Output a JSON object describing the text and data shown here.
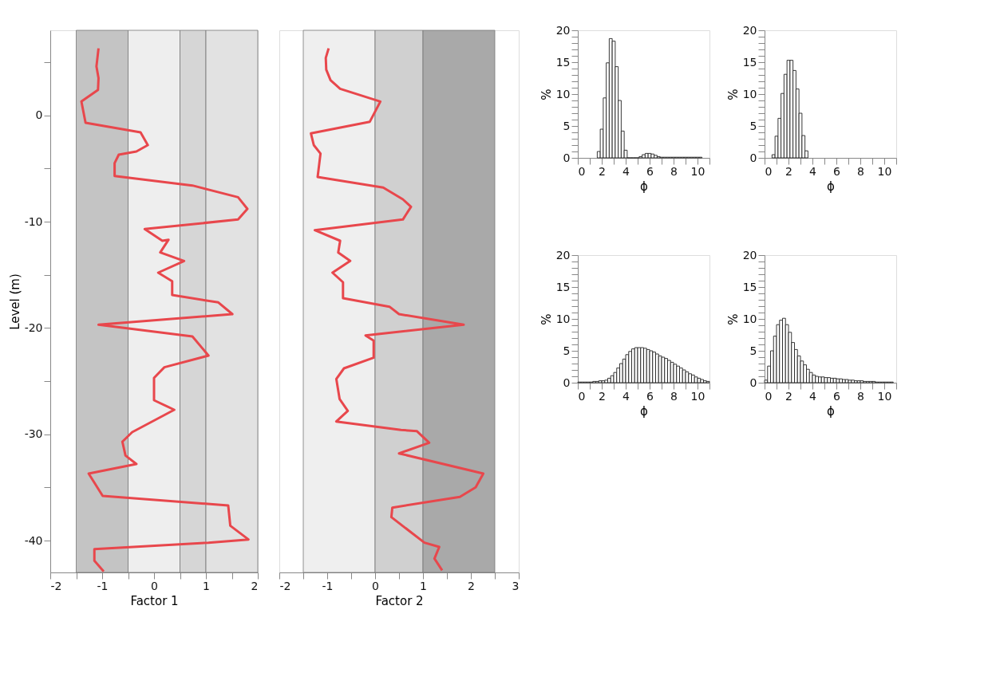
{
  "chart_data": [
    {
      "type": "line",
      "xlabel": "Factor 1",
      "ylabel": "Level (m)",
      "xlim": [
        -2,
        2
      ],
      "ylim": [
        -43,
        8
      ],
      "grid": false,
      "marker": "none",
      "line_style": "solid",
      "xticks": [
        -2,
        {
          "value": -1.5,
          "label": null
        },
        -1,
        {
          "value": -0.5,
          "label": null
        },
        0,
        {
          "value": 0.5,
          "label": null
        },
        1,
        {
          "value": 1.5,
          "label": null
        },
        2
      ],
      "yticks": [
        -40,
        {
          "value": -35,
          "label": null
        },
        -30,
        {
          "value": -25,
          "label": null
        },
        -20,
        {
          "value": -15,
          "label": null
        },
        -10,
        {
          "value": -5,
          "label": null
        },
        0,
        {
          "value": 5,
          "label": null
        }
      ],
      "bands": [
        {
          "axis": "x",
          "from": -1.5,
          "to": -0.5,
          "color": "#c4c4c4"
        },
        {
          "axis": "x",
          "from": -0.5,
          "to": 0.5,
          "color": "#eeeeee"
        },
        {
          "axis": "x",
          "from": 0.5,
          "to": 1,
          "color": "#d6d6d6"
        },
        {
          "axis": "x",
          "from": 1,
          "to": 2,
          "color": "#e2e2e2"
        }
      ],
      "series": [
        {
          "color": "#e8474c",
          "x": [
            -1.07,
            -1.11,
            -1.07,
            -1.08,
            -1.4,
            -1.32,
            -0.26,
            -0.12,
            -0.34,
            -0.68,
            -0.76,
            -0.76,
            0.74,
            1.62,
            1.8,
            1.62,
            -0.18,
            0.16,
            0.28,
            0.12,
            0.58,
            0.08,
            0.35,
            0.35,
            1.24,
            1.51,
            -1.07,
            0.74,
            1.05,
            0.2,
            0,
            0,
            0.39,
            -0.42,
            -0.61,
            -0.55,
            -0.34,
            -1.26,
            -0.99,
            1.43,
            1.47,
            1.82,
            1.05,
            -1.15,
            -1.15,
            -0.97
          ],
          "values": [
            6.3,
            4.6,
            3.5,
            2.4,
            1.3,
            -0.7,
            -1.6,
            -2.8,
            -3.4,
            -3.7,
            -4.5,
            -5.7,
            -6.6,
            -7.7,
            -8.8,
            -9.8,
            -10.7,
            -11.8,
            -11.7,
            -12.9,
            -13.7,
            -14.8,
            -15.6,
            -16.9,
            -17.6,
            -18.7,
            -19.7,
            -20.8,
            -22.6,
            -23.7,
            -24.7,
            -26.8,
            -27.7,
            -29.8,
            -30.7,
            -32,
            -32.8,
            -33.7,
            -35.8,
            -36.7,
            -38.6,
            -39.9,
            -40.2,
            -40.8,
            -41.9,
            -42.9
          ]
        }
      ]
    },
    {
      "type": "line",
      "xlabel": "Factor 2",
      "xlim": [
        -2,
        3
      ],
      "ylim": [
        -43,
        8
      ],
      "grid": false,
      "marker": "none",
      "line_style": "solid",
      "tick_labels": "x",
      "xticks": [
        -2,
        {
          "value": -1.5,
          "label": null
        },
        -1,
        {
          "value": -0.5,
          "label": null
        },
        0,
        {
          "value": 0.5,
          "label": null
        },
        1,
        {
          "value": 1.5,
          "label": null
        },
        2,
        {
          "value": 2.5,
          "label": null
        },
        3
      ],
      "bands": [
        {
          "axis": "x",
          "from": -1.5,
          "to": 0,
          "color": "#efefef"
        },
        {
          "axis": "x",
          "from": 0,
          "to": 1,
          "color": "#d0d0d0"
        },
        {
          "axis": "x",
          "from": 1,
          "to": 2.5,
          "color": "#a9a9a9"
        }
      ],
      "series": [
        {
          "color": "#e8474c",
          "x": [
            -0.97,
            -1.03,
            -1.02,
            -0.93,
            -0.73,
            0.11,
            -0.11,
            -1.34,
            -1.28,
            -1.14,
            -1.2,
            0.17,
            0.58,
            0.75,
            0.58,
            -1.26,
            -0.73,
            -0.77,
            -0.52,
            -0.89,
            -0.67,
            -0.67,
            0.3,
            0.5,
            1.85,
            -0.2,
            -0.03,
            -0.03,
            -0.65,
            -0.81,
            -0.74,
            -0.57,
            -0.81,
            0.54,
            0.87,
            1.13,
            0.5,
            2.26,
            2.1,
            1.77,
            0.36,
            0.34,
            1.03,
            1.34,
            1.24,
            1.4
          ],
          "values": [
            6.3,
            5.4,
            4.3,
            3.3,
            2.5,
            1.3,
            -0.6,
            -1.7,
            -2.8,
            -3.6,
            -5.8,
            -6.8,
            -7.9,
            -8.6,
            -9.8,
            -10.8,
            -11.8,
            -12.9,
            -13.7,
            -14.8,
            -15.7,
            -17.2,
            -18,
            -18.7,
            -19.7,
            -20.7,
            -21.2,
            -22.8,
            -23.8,
            -24.8,
            -26.7,
            -27.8,
            -28.8,
            -29.6,
            -29.7,
            -30.8,
            -31.8,
            -33.7,
            -35,
            -35.9,
            -36.9,
            -37.8,
            -40.2,
            -40.6,
            -41.7,
            -42.8
          ]
        }
      ]
    },
    {
      "type": "histogram",
      "xlabel": "ϕ",
      "ylabel": "%",
      "xlim": [
        0,
        11
      ],
      "ylim": [
        0,
        20
      ],
      "grid": false,
      "xticks": [
        0,
        {
          "value": 1,
          "label": null
        },
        2,
        {
          "value": 3,
          "label": null
        },
        4,
        {
          "value": 5,
          "label": null
        },
        6,
        {
          "value": 7,
          "label": null
        },
        8,
        {
          "value": 9,
          "label": null
        },
        10,
        {
          "value": 11,
          "label": null
        }
      ],
      "yticks": [
        0,
        {
          "value": 1,
          "label": null
        },
        {
          "value": 2,
          "label": null
        },
        {
          "value": 3,
          "label": null
        },
        {
          "value": 4,
          "label": null
        },
        5,
        {
          "value": 6,
          "label": null
        },
        {
          "value": 7,
          "label": null
        },
        {
          "value": 8,
          "label": null
        },
        {
          "value": 9,
          "label": null
        },
        10,
        {
          "value": 11,
          "label": null
        },
        {
          "value": 12,
          "label": null
        },
        {
          "value": 13,
          "label": null
        },
        {
          "value": 14,
          "label": null
        },
        15,
        {
          "value": 16,
          "label": null
        },
        {
          "value": 17,
          "label": null
        },
        {
          "value": 18,
          "label": null
        },
        {
          "value": 19,
          "label": null
        },
        20
      ],
      "color": "#222222",
      "bins": [
        0.625,
        0.875,
        1.125,
        1.375,
        1.625,
        1.875,
        2.125,
        2.375,
        2.625,
        2.875,
        3.125,
        3.375,
        3.625
      ],
      "values": [
        0.5,
        3.4,
        6.2,
        10.1,
        13.1,
        15.3,
        15.3,
        13.7,
        10.8,
        7.0,
        3.5,
        1.1
      ]
    },
    {
      "type": "histogram",
      "xlabel": "ϕ",
      "ylabel": "%",
      "xlim": [
        0,
        11
      ],
      "ylim": [
        0,
        20
      ],
      "grid": false,
      "xticks": [
        0,
        {
          "value": 1,
          "label": null
        },
        2,
        {
          "value": 3,
          "label": null
        },
        4,
        {
          "value": 5,
          "label": null
        },
        6,
        {
          "value": 7,
          "label": null
        },
        8,
        {
          "value": 9,
          "label": null
        },
        10,
        {
          "value": 11,
          "label": null
        }
      ],
      "yticks": [
        0,
        {
          "value": 1,
          "label": null
        },
        {
          "value": 2,
          "label": null
        },
        {
          "value": 3,
          "label": null
        },
        {
          "value": 4,
          "label": null
        },
        5,
        {
          "value": 6,
          "label": null
        },
        {
          "value": 7,
          "label": null
        },
        {
          "value": 8,
          "label": null
        },
        {
          "value": 9,
          "label": null
        },
        10,
        {
          "value": 11,
          "label": null
        },
        {
          "value": 12,
          "label": null
        },
        {
          "value": 13,
          "label": null
        },
        {
          "value": 14,
          "label": null
        },
        15,
        {
          "value": 16,
          "label": null
        },
        {
          "value": 17,
          "label": null
        },
        {
          "value": 18,
          "label": null
        },
        {
          "value": 19,
          "label": null
        },
        20
      ],
      "color": "#222222",
      "bins": [
        1.625,
        1.875,
        2.125,
        2.375,
        2.625,
        2.875,
        3.125,
        3.375,
        3.625,
        3.875,
        4.125,
        4.375,
        4.625,
        4.875,
        5.125,
        5.375,
        5.625,
        5.875,
        6.125,
        6.375,
        6.625,
        6.875,
        7.125,
        7.375,
        7.625,
        7.875,
        8.125,
        8.375,
        8.625,
        8.875,
        9.125,
        9.375,
        9.625,
        9.875,
        10.125,
        10.375
      ],
      "values": [
        1.0,
        4.5,
        9.4,
        14.9,
        18.7,
        18.3,
        14.3,
        9.0,
        4.2,
        1.2,
        0,
        0,
        0,
        0,
        0.2,
        0.5,
        0.7,
        0.7,
        0.6,
        0.4,
        0.2,
        0.1,
        0.1,
        0.1,
        0.1,
        0.1,
        0.1,
        0.1,
        0.1,
        0.1,
        0.1,
        0.1,
        0.1,
        0.1,
        0.1
      ]
    },
    {
      "type": "histogram",
      "xlabel": "ϕ",
      "ylabel": "%",
      "xlim": [
        0,
        11
      ],
      "ylim": [
        0,
        20
      ],
      "grid": false,
      "xticks": [
        0,
        {
          "value": 1,
          "label": null
        },
        2,
        {
          "value": 3,
          "label": null
        },
        4,
        {
          "value": 5,
          "label": null
        },
        6,
        {
          "value": 7,
          "label": null
        },
        8,
        {
          "value": 9,
          "label": null
        },
        10,
        {
          "value": 11,
          "label": null
        }
      ],
      "yticks": [
        0,
        {
          "value": 1,
          "label": null
        },
        {
          "value": 2,
          "label": null
        },
        {
          "value": 3,
          "label": null
        },
        {
          "value": 4,
          "label": null
        },
        5,
        {
          "value": 6,
          "label": null
        },
        {
          "value": 7,
          "label": null
        },
        {
          "value": 8,
          "label": null
        },
        {
          "value": 9,
          "label": null
        },
        10,
        {
          "value": 11,
          "label": null
        },
        {
          "value": 12,
          "label": null
        },
        {
          "value": 13,
          "label": null
        },
        {
          "value": 14,
          "label": null
        },
        15,
        {
          "value": 16,
          "label": null
        },
        {
          "value": 17,
          "label": null
        },
        {
          "value": 18,
          "label": null
        },
        {
          "value": 19,
          "label": null
        },
        20
      ],
      "color": "#222222",
      "bins": [
        0,
        0.25,
        0.5,
        0.75,
        1,
        1.25,
        1.5,
        1.75,
        2,
        2.25,
        2.5,
        2.75,
        3,
        3.25,
        3.5,
        3.75,
        4,
        4.25,
        4.5,
        4.75,
        5,
        5.25,
        5.5,
        5.75,
        6,
        6.25,
        6.5,
        6.75,
        7,
        7.25,
        7.5,
        7.75,
        8,
        8.25,
        8.5,
        8.75,
        9,
        9.25,
        9.5,
        9.75,
        10,
        10.25,
        10.5,
        10.75
      ],
      "values": [
        0.4,
        2.6,
        5.0,
        7.3,
        9.1,
        9.8,
        10.1,
        9.1,
        7.9,
        6.3,
        5.2,
        4.2,
        3.4,
        2.8,
        2.1,
        1.6,
        1.2,
        1.0,
        0.9,
        0.9,
        0.8,
        0.8,
        0.7,
        0.7,
        0.6,
        0.6,
        0.5,
        0.5,
        0.4,
        0.4,
        0.3,
        0.3,
        0.3,
        0.2,
        0.2,
        0.2,
        0.2,
        0.1,
        0.1,
        0.1,
        0.1,
        0.1,
        0.1
      ]
    },
    {
      "type": "histogram",
      "xlabel": "ϕ",
      "ylabel": "%",
      "xlim": [
        0,
        11
      ],
      "ylim": [
        0,
        20
      ],
      "grid": false,
      "xticks": [
        0,
        {
          "value": 1,
          "label": null
        },
        2,
        {
          "value": 3,
          "label": null
        },
        4,
        {
          "value": 5,
          "label": null
        },
        6,
        {
          "value": 7,
          "label": null
        },
        8,
        {
          "value": 9,
          "label": null
        },
        10,
        {
          "value": 11,
          "label": null
        }
      ],
      "yticks": [
        0,
        {
          "value": 1,
          "label": null
        },
        {
          "value": 2,
          "label": null
        },
        {
          "value": 3,
          "label": null
        },
        {
          "value": 4,
          "label": null
        },
        5,
        {
          "value": 6,
          "label": null
        },
        {
          "value": 7,
          "label": null
        },
        {
          "value": 8,
          "label": null
        },
        {
          "value": 9,
          "label": null
        },
        10,
        {
          "value": 11,
          "label": null
        },
        {
          "value": 12,
          "label": null
        },
        {
          "value": 13,
          "label": null
        },
        {
          "value": 14,
          "label": null
        },
        15,
        {
          "value": 16,
          "label": null
        },
        {
          "value": 17,
          "label": null
        },
        {
          "value": 18,
          "label": null
        },
        {
          "value": 19,
          "label": null
        },
        20
      ],
      "color": "#222222",
      "bins": [
        0,
        0.25,
        0.5,
        0.75,
        1,
        1.25,
        1.5,
        1.75,
        2,
        2.25,
        2.5,
        2.75,
        3,
        3.25,
        3.5,
        3.75,
        4,
        4.25,
        4.5,
        4.75,
        5,
        5.25,
        5.5,
        5.75,
        6,
        6.25,
        6.5,
        6.75,
        7,
        7.25,
        7.5,
        7.75,
        8,
        8.25,
        8.5,
        8.75,
        9,
        9.25,
        9.5,
        9.75,
        10,
        10.25,
        10.5,
        10.75,
        11
      ],
      "values": [
        0.1,
        0.1,
        0.1,
        0.1,
        0.1,
        0.2,
        0.2,
        0.3,
        0.3,
        0.4,
        0.7,
        1.1,
        1.6,
        2.3,
        3.0,
        3.7,
        4.4,
        4.9,
        5.3,
        5.5,
        5.5,
        5.5,
        5.4,
        5.2,
        5.0,
        4.8,
        4.5,
        4.2,
        4.0,
        3.8,
        3.5,
        3.2,
        2.9,
        2.6,
        2.3,
        2.0,
        1.7,
        1.4,
        1.2,
        0.9,
        0.7,
        0.5,
        0.3,
        0.2
      ]
    }
  ]
}
